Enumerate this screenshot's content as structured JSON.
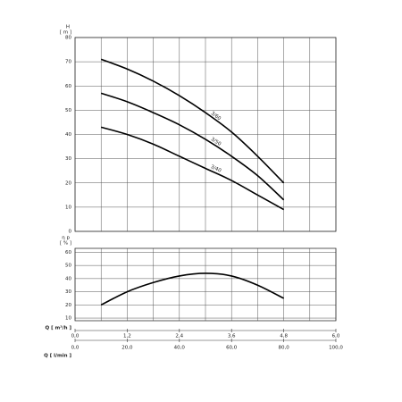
{
  "chart_data": [
    {
      "type": "line",
      "ylabel": "H",
      "yunit": "[ m ]",
      "x": [
        0.6,
        1.2,
        1.8,
        2.4,
        3.0,
        3.6,
        4.2,
        4.8
      ],
      "series": [
        {
          "name": "3/60",
          "color": "#000000",
          "values": [
            71,
            67,
            62,
            56,
            49,
            41,
            31,
            20
          ]
        },
        {
          "name": "3/50",
          "color": "#000000",
          "values": [
            57,
            53.5,
            49,
            44,
            38,
            31,
            23,
            13
          ]
        },
        {
          "name": "3/40",
          "color": "#000000",
          "values": [
            43,
            40,
            36,
            31,
            26,
            21,
            15,
            9
          ]
        }
      ],
      "xlim": [
        0,
        6
      ],
      "xgrid": [
        0,
        0.6,
        1.2,
        1.8,
        2.4,
        3.0,
        3.6,
        4.2,
        4.8,
        5.4,
        6.0
      ],
      "ylim": [
        0,
        80
      ],
      "yticks": [
        0,
        10,
        20,
        30,
        40,
        50,
        60,
        70,
        80
      ],
      "grid": true
    },
    {
      "type": "line",
      "ylabel": "η p",
      "yunit": "[ % ]",
      "x": [
        0.6,
        1.2,
        1.8,
        2.4,
        3.0,
        3.6,
        4.2,
        4.8
      ],
      "series": [
        {
          "color": "#000000",
          "values": [
            20,
            30,
            37,
            42,
            44,
            42,
            35,
            25
          ]
        }
      ],
      "xlim": [
        0,
        6
      ],
      "xgrid": [
        0,
        0.6,
        1.2,
        1.8,
        2.4,
        3.0,
        3.6,
        4.2,
        4.8,
        5.4,
        6.0
      ],
      "ylim": [
        8,
        63
      ],
      "yticks": [
        10,
        20,
        30,
        40,
        50,
        60
      ],
      "grid": true,
      "xlabel": "Q [ m³/h ]",
      "xticks": [
        {
          "value": 0,
          "label": "0,0"
        },
        {
          "value": 1.2,
          "label": "1,2"
        },
        {
          "value": 2.4,
          "label": "2,4"
        },
        {
          "value": 3.6,
          "label": "3,6"
        },
        {
          "value": 4.8,
          "label": "4,8"
        },
        {
          "value": 6.0,
          "label": "6,0"
        }
      ],
      "x2label": "Q [ l/min ]",
      "x2lim": [
        0,
        100
      ],
      "x2ticks": [
        {
          "value": 0,
          "label": "0,0"
        },
        {
          "value": 20,
          "label": "20,0"
        },
        {
          "value": 40,
          "label": "40,0"
        },
        {
          "value": 60,
          "label": "60,0"
        },
        {
          "value": 80,
          "label": "80,0"
        },
        {
          "value": 100,
          "label": "100,0"
        }
      ]
    }
  ]
}
